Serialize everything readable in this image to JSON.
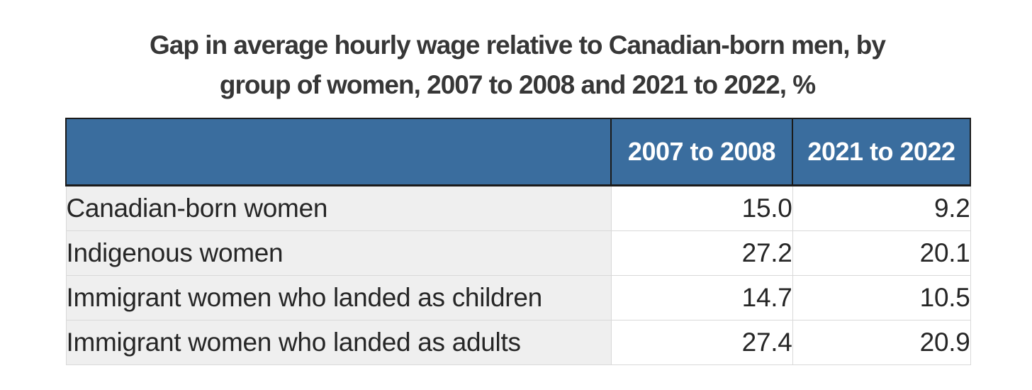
{
  "title": {
    "full": "Gap in average hourly wage relative to Canadian-born men, by group of women, 2007 to 2008 and 2021 to 2022, %",
    "line1": "Gap in average hourly wage relative to Canadian-born men, by",
    "line2": "group of women, 2007 to 2008 and 2021 to 2022, %"
  },
  "table": {
    "columns": [
      "",
      "2007 to 2008",
      "2021 to 2022"
    ],
    "rows": [
      {
        "label": "Canadian-born women",
        "values": [
          "15.0",
          "9.2"
        ]
      },
      {
        "label": "Indigenous women",
        "values": [
          "27.2",
          "20.1"
        ]
      },
      {
        "label": "Immigrant women who landed as children",
        "values": [
          "14.7",
          "10.5"
        ]
      },
      {
        "label": "Immigrant women who landed as adults",
        "values": [
          "27.4",
          "20.9"
        ]
      }
    ]
  },
  "colors": {
    "header_background": "#3a6d9e",
    "header_text": "#ffffff",
    "header_border": "#1b1b1b",
    "row_label_background": "#efefef",
    "value_cell_background": "#ffffff",
    "body_border": "#d9d9d9",
    "body_text": "#262626",
    "title_text": "#373737"
  },
  "chart_data": {
    "type": "table",
    "title": "Gap in average hourly wage relative to Canadian-born men, by group of women, 2007 to 2008 and 2021 to 2022, %",
    "categories": [
      "Canadian-born women",
      "Indigenous women",
      "Immigrant women who landed as children",
      "Immigrant women who landed as adults"
    ],
    "series": [
      {
        "name": "2007 to 2008",
        "values": [
          15.0,
          27.2,
          14.7,
          27.4
        ]
      },
      {
        "name": "2021 to 2022",
        "values": [
          9.2,
          20.1,
          10.5,
          20.9
        ]
      }
    ],
    "unit": "%",
    "layout": "header row blue with white bold text; label column light gray; numeric cells white, right-aligned"
  }
}
